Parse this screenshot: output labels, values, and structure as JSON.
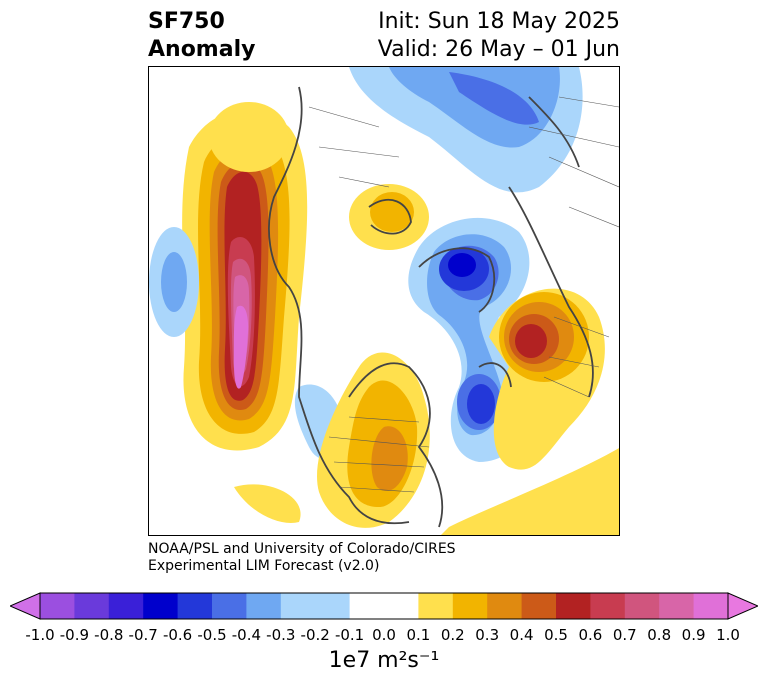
{
  "header": {
    "title_line1": "SF750",
    "title_line2": "Anomaly",
    "init_text": "Init: Sun 18 May 2025",
    "valid_text": "Valid: 26 May – 01 Jun"
  },
  "credit": {
    "line1": "NOAA/PSL and University of Colorado/CIRES",
    "line2": "Experimental LIM Forecast (v2.0)"
  },
  "colorbar": {
    "units_text": "1e7 m²s⁻¹",
    "tick_labels": [
      "-1.0",
      "-0.9",
      "-0.8",
      "-0.7",
      "-0.6",
      "-0.5",
      "-0.4",
      "-0.3",
      "-0.2",
      "-0.1",
      "0.0",
      "0.1",
      "0.2",
      "0.3",
      "0.4",
      "0.5",
      "0.6",
      "0.7",
      "0.8",
      "0.9",
      "1.0"
    ],
    "colors": [
      "#9b4fe0",
      "#6a3adb",
      "#3a20d8",
      "#0000cc",
      "#2338d9",
      "#4a6fe6",
      "#6fa8f2",
      "#aad6fb",
      "#ffffff",
      "#ffffff",
      "#ffe04d",
      "#f2b400",
      "#e08a10",
      "#cc5a18",
      "#b22222",
      "#c83c50",
      "#d0557e",
      "#d865a8",
      "#e070d8"
    ],
    "under_color": "#d070e8",
    "over_color": "#e878e0"
  },
  "map": {
    "projection": "north-polar-stereographic",
    "field": "streamfunction 750 hPa anomaly",
    "coastline_color": "#444444"
  }
}
